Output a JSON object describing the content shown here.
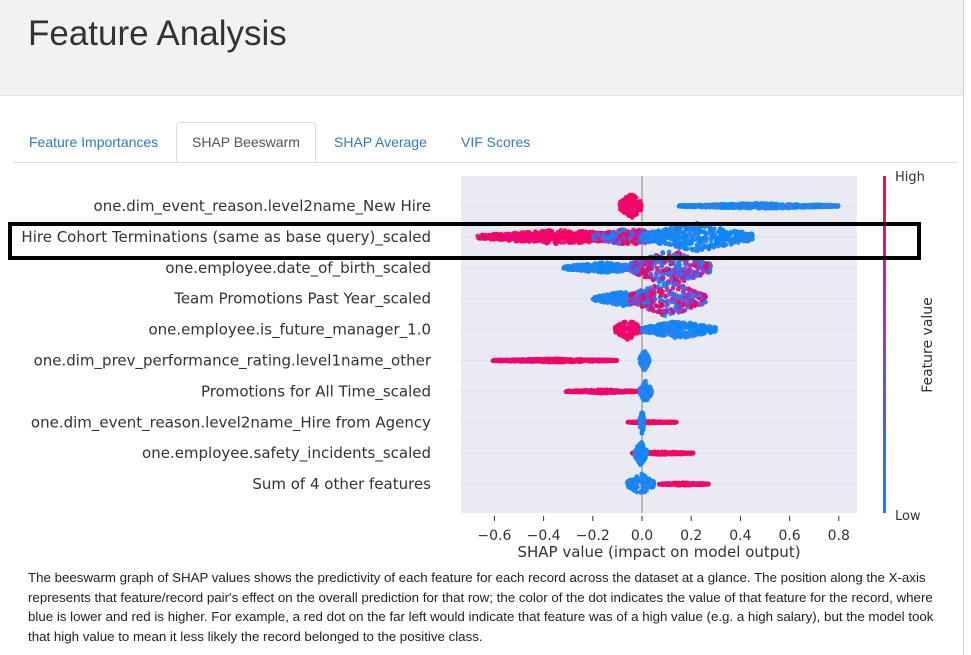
{
  "header": {
    "title": "Feature Analysis"
  },
  "tabs": [
    {
      "label": "Feature Importances"
    },
    {
      "label": "SHAP Beeswarm"
    },
    {
      "label": "SHAP Average"
    },
    {
      "label": "VIF Scores"
    }
  ],
  "active_tab": "SHAP Beeswarm",
  "chart_data": {
    "type": "scatter",
    "subtype": "beeswarm",
    "xlabel": "SHAP value (impact on model output)",
    "xlim": [
      -0.73,
      0.88
    ],
    "xticks": [
      "−0.6",
      "−0.4",
      "−0.2",
      "0.0",
      "0.2",
      "0.4",
      "0.6",
      "0.8"
    ],
    "xtick_values": [
      -0.6,
      -0.4,
      -0.2,
      0,
      0.2,
      0.4,
      0.6,
      0.8
    ],
    "colorbar": {
      "label": "Feature value",
      "high": "High",
      "low": "Low",
      "high_color": "#ff0052",
      "low_color": "#008bfb"
    },
    "features": [
      {
        "name": "one.dim_event_reason.level2name_New Hire",
        "clusters": [
          {
            "min": -0.09,
            "max": 0.0,
            "color": "high",
            "spread": 0.8
          },
          {
            "min": 0.15,
            "max": 0.8,
            "color": "low",
            "spread": 0.15
          }
        ]
      },
      {
        "name": "Hire Cohort Terminations (same as base query)_scaled",
        "clusters": [
          {
            "min": -0.67,
            "max": 0.0,
            "color": "high",
            "spread": 0.4
          },
          {
            "min": -0.2,
            "max": 0.1,
            "color": "mixed",
            "spread": 0.5
          },
          {
            "min": 0.0,
            "max": 0.45,
            "color": "low",
            "spread": 0.8
          }
        ]
      },
      {
        "name": "one.employee.date_of_birth_scaled",
        "clusters": [
          {
            "min": -0.32,
            "max": 0.0,
            "color": "low",
            "spread": 0.3
          },
          {
            "min": -0.05,
            "max": 0.28,
            "color": "mixed",
            "spread": 1.0
          }
        ]
      },
      {
        "name": "Team Promotions Past Year_scaled",
        "clusters": [
          {
            "min": -0.2,
            "max": 0.05,
            "color": "low",
            "spread": 0.4
          },
          {
            "min": -0.05,
            "max": 0.26,
            "color": "mixed",
            "spread": 1.0
          }
        ]
      },
      {
        "name": "one.employee.is_future_manager_1.0",
        "clusters": [
          {
            "min": -0.11,
            "max": 0.0,
            "color": "high",
            "spread": 0.6
          },
          {
            "min": 0.0,
            "max": 0.3,
            "color": "low",
            "spread": 0.5
          }
        ]
      },
      {
        "name": "one.dim_prev_performance_rating.level1name_other",
        "clusters": [
          {
            "min": -0.61,
            "max": -0.1,
            "color": "high",
            "spread": 0.1
          },
          {
            "min": -0.01,
            "max": 0.03,
            "color": "low",
            "spread": 0.6
          }
        ]
      },
      {
        "name": "Promotions for All Time_scaled",
        "clusters": [
          {
            "min": -0.31,
            "max": -0.02,
            "color": "high",
            "spread": 0.1
          },
          {
            "min": -0.01,
            "max": 0.04,
            "color": "low",
            "spread": 0.6
          }
        ]
      },
      {
        "name": "one.dim_event_reason.level2name_Hire from Agency",
        "clusters": [
          {
            "min": -0.06,
            "max": 0.14,
            "color": "high",
            "spread": 0.05
          },
          {
            "min": -0.01,
            "max": 0.01,
            "color": "low",
            "spread": 0.7
          }
        ]
      },
      {
        "name": "one.employee.safety_incidents_scaled",
        "clusters": [
          {
            "min": -0.04,
            "max": 0.21,
            "color": "high",
            "spread": 0.08
          },
          {
            "min": -0.03,
            "max": 0.02,
            "color": "low",
            "spread": 0.7
          }
        ]
      },
      {
        "name": "Sum of 4 other features",
        "clusters": [
          {
            "min": -0.06,
            "max": 0.05,
            "color": "low",
            "spread": 0.6
          },
          {
            "min": 0.07,
            "max": 0.27,
            "color": "high",
            "spread": 0.08
          }
        ]
      }
    ]
  },
  "description": "The beeswarm graph of SHAP values shows the predictivity of each feature for each record across the dataset at a glance. The position along the X-axis represents that feature/record pair's effect on the overall prediction for that row; the color of the dot indicates the value of that feature for the record, where blue is lower and red is higher. For example, a red dot on the far left would indicate that feature was of a high value (e.g. a high salary), but the model took that high value to mean it less likely the record belonged to the positive class."
}
